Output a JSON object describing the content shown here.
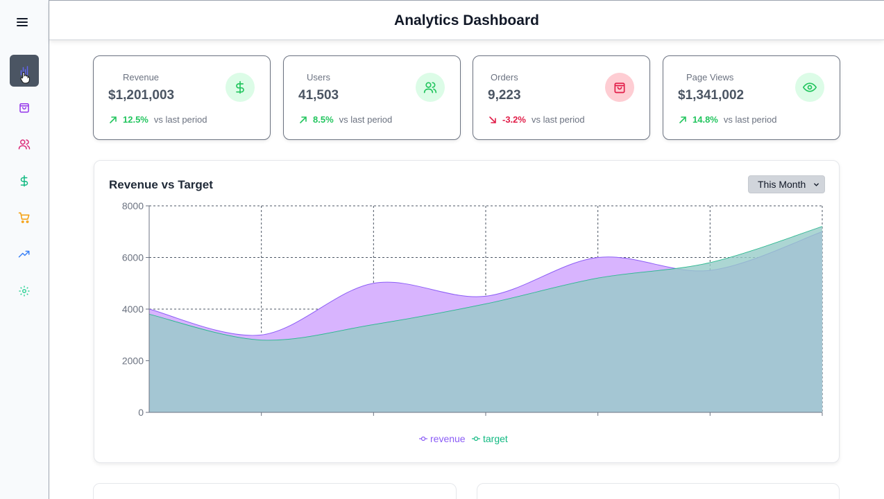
{
  "header": {
    "title": "Analytics Dashboard"
  },
  "sidebar": {
    "items": [
      {
        "name": "analytics",
        "icon": "bar-chart-icon",
        "color": "#6366f1",
        "active": true
      },
      {
        "name": "orders",
        "icon": "shopping-bag-icon",
        "color": "#9333ea"
      },
      {
        "name": "users",
        "icon": "users-icon",
        "color": "#db2777"
      },
      {
        "name": "revenue",
        "icon": "dollar-icon",
        "color": "#10b981"
      },
      {
        "name": "cart",
        "icon": "shopping-cart-icon",
        "color": "#f59e0b"
      },
      {
        "name": "trends",
        "icon": "trending-up-icon",
        "color": "#3b82f6"
      },
      {
        "name": "settings",
        "icon": "gear-icon",
        "color": "#34d399"
      }
    ]
  },
  "stats": [
    {
      "label": "Revenue",
      "value": "$1,201,003",
      "change": "12.5%",
      "direction": "up",
      "compare": "vs last period",
      "icon": "dollar-icon",
      "color": "#22c55e",
      "bg": "#dcfce7"
    },
    {
      "label": "Users",
      "value": "41,503",
      "change": "8.5%",
      "direction": "up",
      "compare": "vs last period",
      "icon": "users-icon",
      "color": "#22c55e",
      "bg": "#dcfce7"
    },
    {
      "label": "Orders",
      "value": "9,223",
      "change": "-3.2%",
      "direction": "down",
      "compare": "vs last period",
      "icon": "shopping-bag-icon",
      "color": "#e11d48",
      "bg": "#fecdd3"
    },
    {
      "label": "Page Views",
      "value": "$1,341,002",
      "change": "14.8%",
      "direction": "up",
      "compare": "vs last period",
      "icon": "eye-icon",
      "color": "#22c55e",
      "bg": "#dcfce7"
    }
  ],
  "chart_card": {
    "title": "Revenue vs Target",
    "period_select": "This Month"
  },
  "chart_data": {
    "type": "area",
    "title": "Revenue vs Target",
    "x": [
      0,
      1,
      2,
      3,
      4,
      5,
      6
    ],
    "xlabel": "",
    "ylabel": "",
    "ylim": [
      0,
      8000
    ],
    "yticks": [
      0,
      2000,
      4000,
      6000,
      8000
    ],
    "grid": true,
    "legend": "bottom-center",
    "series": [
      {
        "name": "revenue",
        "values": [
          4000,
          3000,
          5000,
          4500,
          6000,
          5500,
          7000
        ],
        "color": "#8b5cf6",
        "fill": "#d8b4fe"
      },
      {
        "name": "target",
        "values": [
          3800,
          2800,
          3400,
          4200,
          5200,
          5800,
          7200
        ],
        "color": "#10b981",
        "fill": "#a7f3d0"
      }
    ]
  }
}
